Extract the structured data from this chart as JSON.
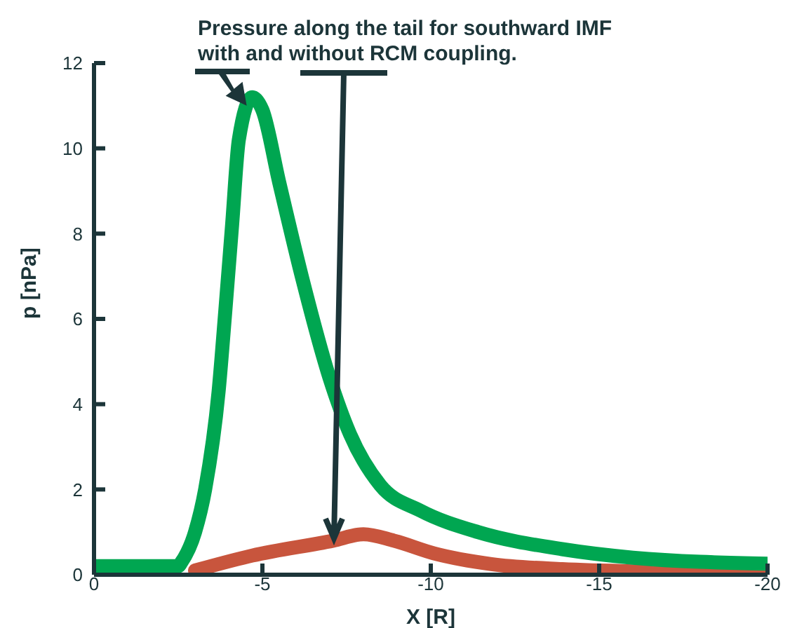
{
  "chart_data": {
    "type": "line",
    "xlabel": "X [R]",
    "ylabel": "p [nPa]",
    "annotations": [
      {
        "text": "Pressure along the tail for southward IMF\nwith and without RCM coupling.",
        "x": -4.7,
        "y": 11.2
      }
    ],
    "xlim": [
      0,
      -20
    ],
    "xticks": [
      0,
      -5,
      -10,
      -15,
      -20
    ],
    "ylim": [
      0,
      12
    ],
    "yticks": [
      0,
      2,
      4,
      6,
      8,
      10,
      12
    ],
    "grid": false,
    "line_style": "solid",
    "marker": "none",
    "series": [
      {
        "color": "#c8553d",
        "x": [
          -3,
          -4.7,
          -7.1,
          -8,
          -8.9,
          -10.1,
          -11.8,
          -13.9,
          -16,
          -20
        ],
        "values": [
          0.1,
          0.45,
          0.8,
          0.95,
          0.8,
          0.5,
          0.25,
          0.13,
          0.08,
          0.05
        ]
      },
      {
        "color": "#00a651",
        "x": [
          0,
          -1,
          -2,
          -2.5,
          -2.6,
          -3,
          -3.3,
          -3.7,
          -3.9,
          -4.1,
          -4.3,
          -4.7,
          -5,
          -5.5,
          -6.2,
          -7,
          -7.6,
          -8.5,
          -9.7,
          -11.4,
          -13.9,
          -16,
          -20
        ],
        "values": [
          0.2,
          0.2,
          0.2,
          0.2,
          0.3,
          1,
          2,
          4.3,
          6.2,
          8.2,
          10.2,
          11.2,
          10.9,
          9.2,
          6.9,
          4.6,
          3.3,
          2.1,
          1.5,
          1,
          0.6,
          0.4,
          0.26
        ]
      }
    ]
  }
}
